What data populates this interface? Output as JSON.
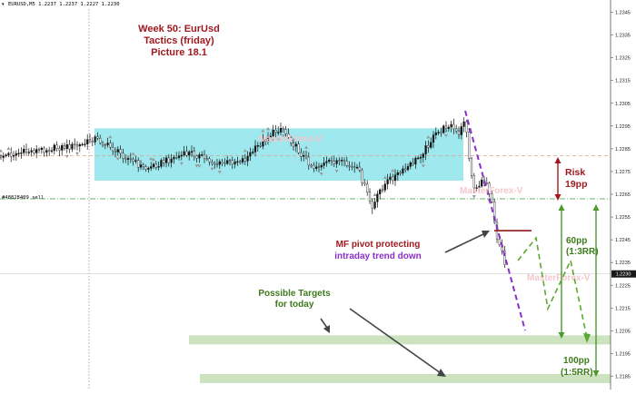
{
  "header": {
    "symbol_info": "EURUSD,M5  1.2237 1.2237 1.2227 1.2230",
    "order_label": "#48828409 sell"
  },
  "title": {
    "line1": "Week 50: EurUsd",
    "line2": "Tactics (friday)",
    "line3": "Picture 18.1"
  },
  "watermark": "MasterForex-V",
  "annotations": {
    "risk_line1": "Risk",
    "risk_line2": "19pp",
    "target1_line1": "60pp",
    "target1_line2": "(1:3RR)",
    "target2_line1": "100pp",
    "target2_line2": "(1:5RR)",
    "mf_line1": "MF pivot protecting",
    "mf_line2": "intraday trend down",
    "targets_line1": "Possible Targets",
    "targets_line2": "for today"
  },
  "colors": {
    "title_red": "#a0191f",
    "target_green": "#3d7a1b",
    "trend_purple": "#8b2fc9",
    "range_box": "#9ee8ee",
    "target_zone": "#cde3c0",
    "watermark": "#f3c7cc"
  },
  "chart_data": {
    "type": "candlestick",
    "symbol": "EURUSD",
    "timeframe": "M5",
    "ohlc_header": {
      "open": 1.2237,
      "high": 1.2237,
      "low": 1.2227,
      "close": 1.223
    },
    "ylim": [
      1.2181,
      1.2353
    ],
    "y_ticks": [
      "1.2345",
      "1.2335",
      "1.2325",
      "1.2315",
      "1.2305",
      "1.2295",
      "1.2285",
      "1.2275",
      "1.2265",
      "1.2255",
      "1.2245",
      "1.2235",
      "1.2225",
      "1.2215",
      "1.2205",
      "1.2195",
      "1.2185"
    ],
    "current_price": "1.2230",
    "levels": {
      "risk_stop": 1.2282,
      "entry": 1.2263,
      "mf_pivot": 1.2249,
      "range_box_top": 1.2294,
      "range_box_bottom": 1.2271,
      "target_zone_1": [
        1.2199,
        1.2203
      ],
      "target_zone_2": [
        1.2182,
        1.2186
      ]
    },
    "grid": false
  }
}
